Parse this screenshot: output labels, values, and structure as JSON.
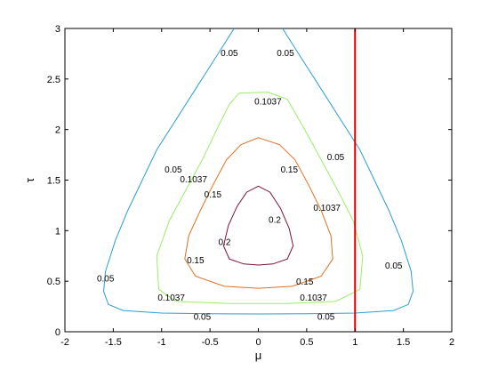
{
  "chart_data": {
    "type": "contour",
    "title": "",
    "xlabel": "μ",
    "ylabel": "τ",
    "xlim": [
      -2,
      2
    ],
    "ylim": [
      0,
      3
    ],
    "x_ticks": [
      "-2",
      "-1.5",
      "-1",
      "-0.5",
      "0",
      "0.5",
      "1",
      "1.5",
      "2"
    ],
    "y_ticks": [
      "0",
      "0.5",
      "1",
      "1.5",
      "2",
      "2.5",
      "3"
    ],
    "grid": false,
    "legend": "none",
    "vertical_line": {
      "x": 1,
      "color": "#dd0000"
    },
    "contours": [
      {
        "level": 0.05,
        "label": "0.05",
        "color": "#2a9fd6",
        "points": [
          [
            -0.25,
            3.0
          ],
          [
            -0.45,
            2.7
          ],
          [
            -0.65,
            2.4
          ],
          [
            -0.85,
            2.1
          ],
          [
            -1.05,
            1.8
          ],
          [
            -1.2,
            1.5
          ],
          [
            -1.35,
            1.2
          ],
          [
            -1.48,
            0.9
          ],
          [
            -1.58,
            0.6
          ],
          [
            -1.6,
            0.4
          ],
          [
            -1.55,
            0.27
          ],
          [
            -1.4,
            0.21
          ],
          [
            -1.0,
            0.185
          ],
          [
            -0.5,
            0.178
          ],
          [
            0.0,
            0.176
          ],
          [
            0.5,
            0.178
          ],
          [
            1.0,
            0.185
          ],
          [
            1.4,
            0.21
          ],
          [
            1.55,
            0.27
          ],
          [
            1.6,
            0.4
          ],
          [
            1.58,
            0.6
          ],
          [
            1.48,
            0.9
          ],
          [
            1.35,
            1.2
          ],
          [
            1.2,
            1.5
          ],
          [
            1.05,
            1.8
          ],
          [
            0.85,
            2.1
          ],
          [
            0.65,
            2.4
          ],
          [
            0.45,
            2.7
          ],
          [
            0.25,
            3.0
          ]
        ],
        "closed": false,
        "labels": [
          [
            -0.3,
            2.75
          ],
          [
            0.28,
            2.75
          ],
          [
            -0.88,
            1.6
          ],
          [
            0.8,
            1.72
          ],
          [
            -1.58,
            0.52
          ],
          [
            1.4,
            0.65
          ],
          [
            -0.58,
            0.14
          ],
          [
            0.7,
            0.14
          ]
        ]
      },
      {
        "level": 0.1037,
        "label": "0.1037",
        "color": "#99ee66",
        "points": [
          [
            -0.2,
            2.36
          ],
          [
            0.1,
            2.37
          ],
          [
            0.3,
            2.3
          ],
          [
            0.48,
            2.0
          ],
          [
            0.65,
            1.7
          ],
          [
            0.82,
            1.4
          ],
          [
            0.98,
            1.1
          ],
          [
            1.08,
            0.75
          ],
          [
            1.05,
            0.42
          ],
          [
            0.8,
            0.3
          ],
          [
            0.3,
            0.28
          ],
          [
            -0.3,
            0.28
          ],
          [
            -0.85,
            0.3
          ],
          [
            -1.03,
            0.42
          ],
          [
            -1.05,
            0.75
          ],
          [
            -0.92,
            1.1
          ],
          [
            -0.75,
            1.4
          ],
          [
            -0.58,
            1.7
          ],
          [
            -0.43,
            2.0
          ],
          [
            -0.3,
            2.25
          ]
        ],
        "closed": true,
        "labels": [
          [
            0.1,
            2.27
          ],
          [
            -0.67,
            1.5
          ],
          [
            0.71,
            1.22
          ],
          [
            -0.9,
            0.33
          ],
          [
            0.57,
            0.33
          ]
        ]
      },
      {
        "level": 0.15,
        "label": "0.15",
        "color": "#e07020",
        "points": [
          [
            0.0,
            1.92
          ],
          [
            0.22,
            1.85
          ],
          [
            0.38,
            1.7
          ],
          [
            0.52,
            1.45
          ],
          [
            0.65,
            1.2
          ],
          [
            0.75,
            0.95
          ],
          [
            0.77,
            0.72
          ],
          [
            0.65,
            0.55
          ],
          [
            0.35,
            0.45
          ],
          [
            0.0,
            0.43
          ],
          [
            -0.35,
            0.45
          ],
          [
            -0.65,
            0.55
          ],
          [
            -0.76,
            0.72
          ],
          [
            -0.72,
            0.95
          ],
          [
            -0.6,
            1.2
          ],
          [
            -0.47,
            1.45
          ],
          [
            -0.33,
            1.7
          ],
          [
            -0.18,
            1.85
          ]
        ],
        "closed": true,
        "labels": [
          [
            -0.47,
            1.35
          ],
          [
            0.32,
            1.6
          ],
          [
            -0.65,
            0.7
          ],
          [
            0.48,
            0.49
          ]
        ]
      },
      {
        "level": 0.2,
        "label": "0.2",
        "color": "#7a1040",
        "points": [
          [
            0.0,
            1.44
          ],
          [
            0.12,
            1.38
          ],
          [
            0.23,
            1.22
          ],
          [
            0.32,
            1.02
          ],
          [
            0.36,
            0.85
          ],
          [
            0.3,
            0.72
          ],
          [
            0.15,
            0.67
          ],
          [
            0.0,
            0.66
          ],
          [
            -0.15,
            0.67
          ],
          [
            -0.3,
            0.72
          ],
          [
            -0.36,
            0.85
          ],
          [
            -0.31,
            1.05
          ],
          [
            -0.22,
            1.24
          ],
          [
            -0.12,
            1.38
          ]
        ],
        "closed": true,
        "labels": [
          [
            0.17,
            1.1
          ],
          [
            -0.35,
            0.88
          ]
        ]
      }
    ]
  }
}
